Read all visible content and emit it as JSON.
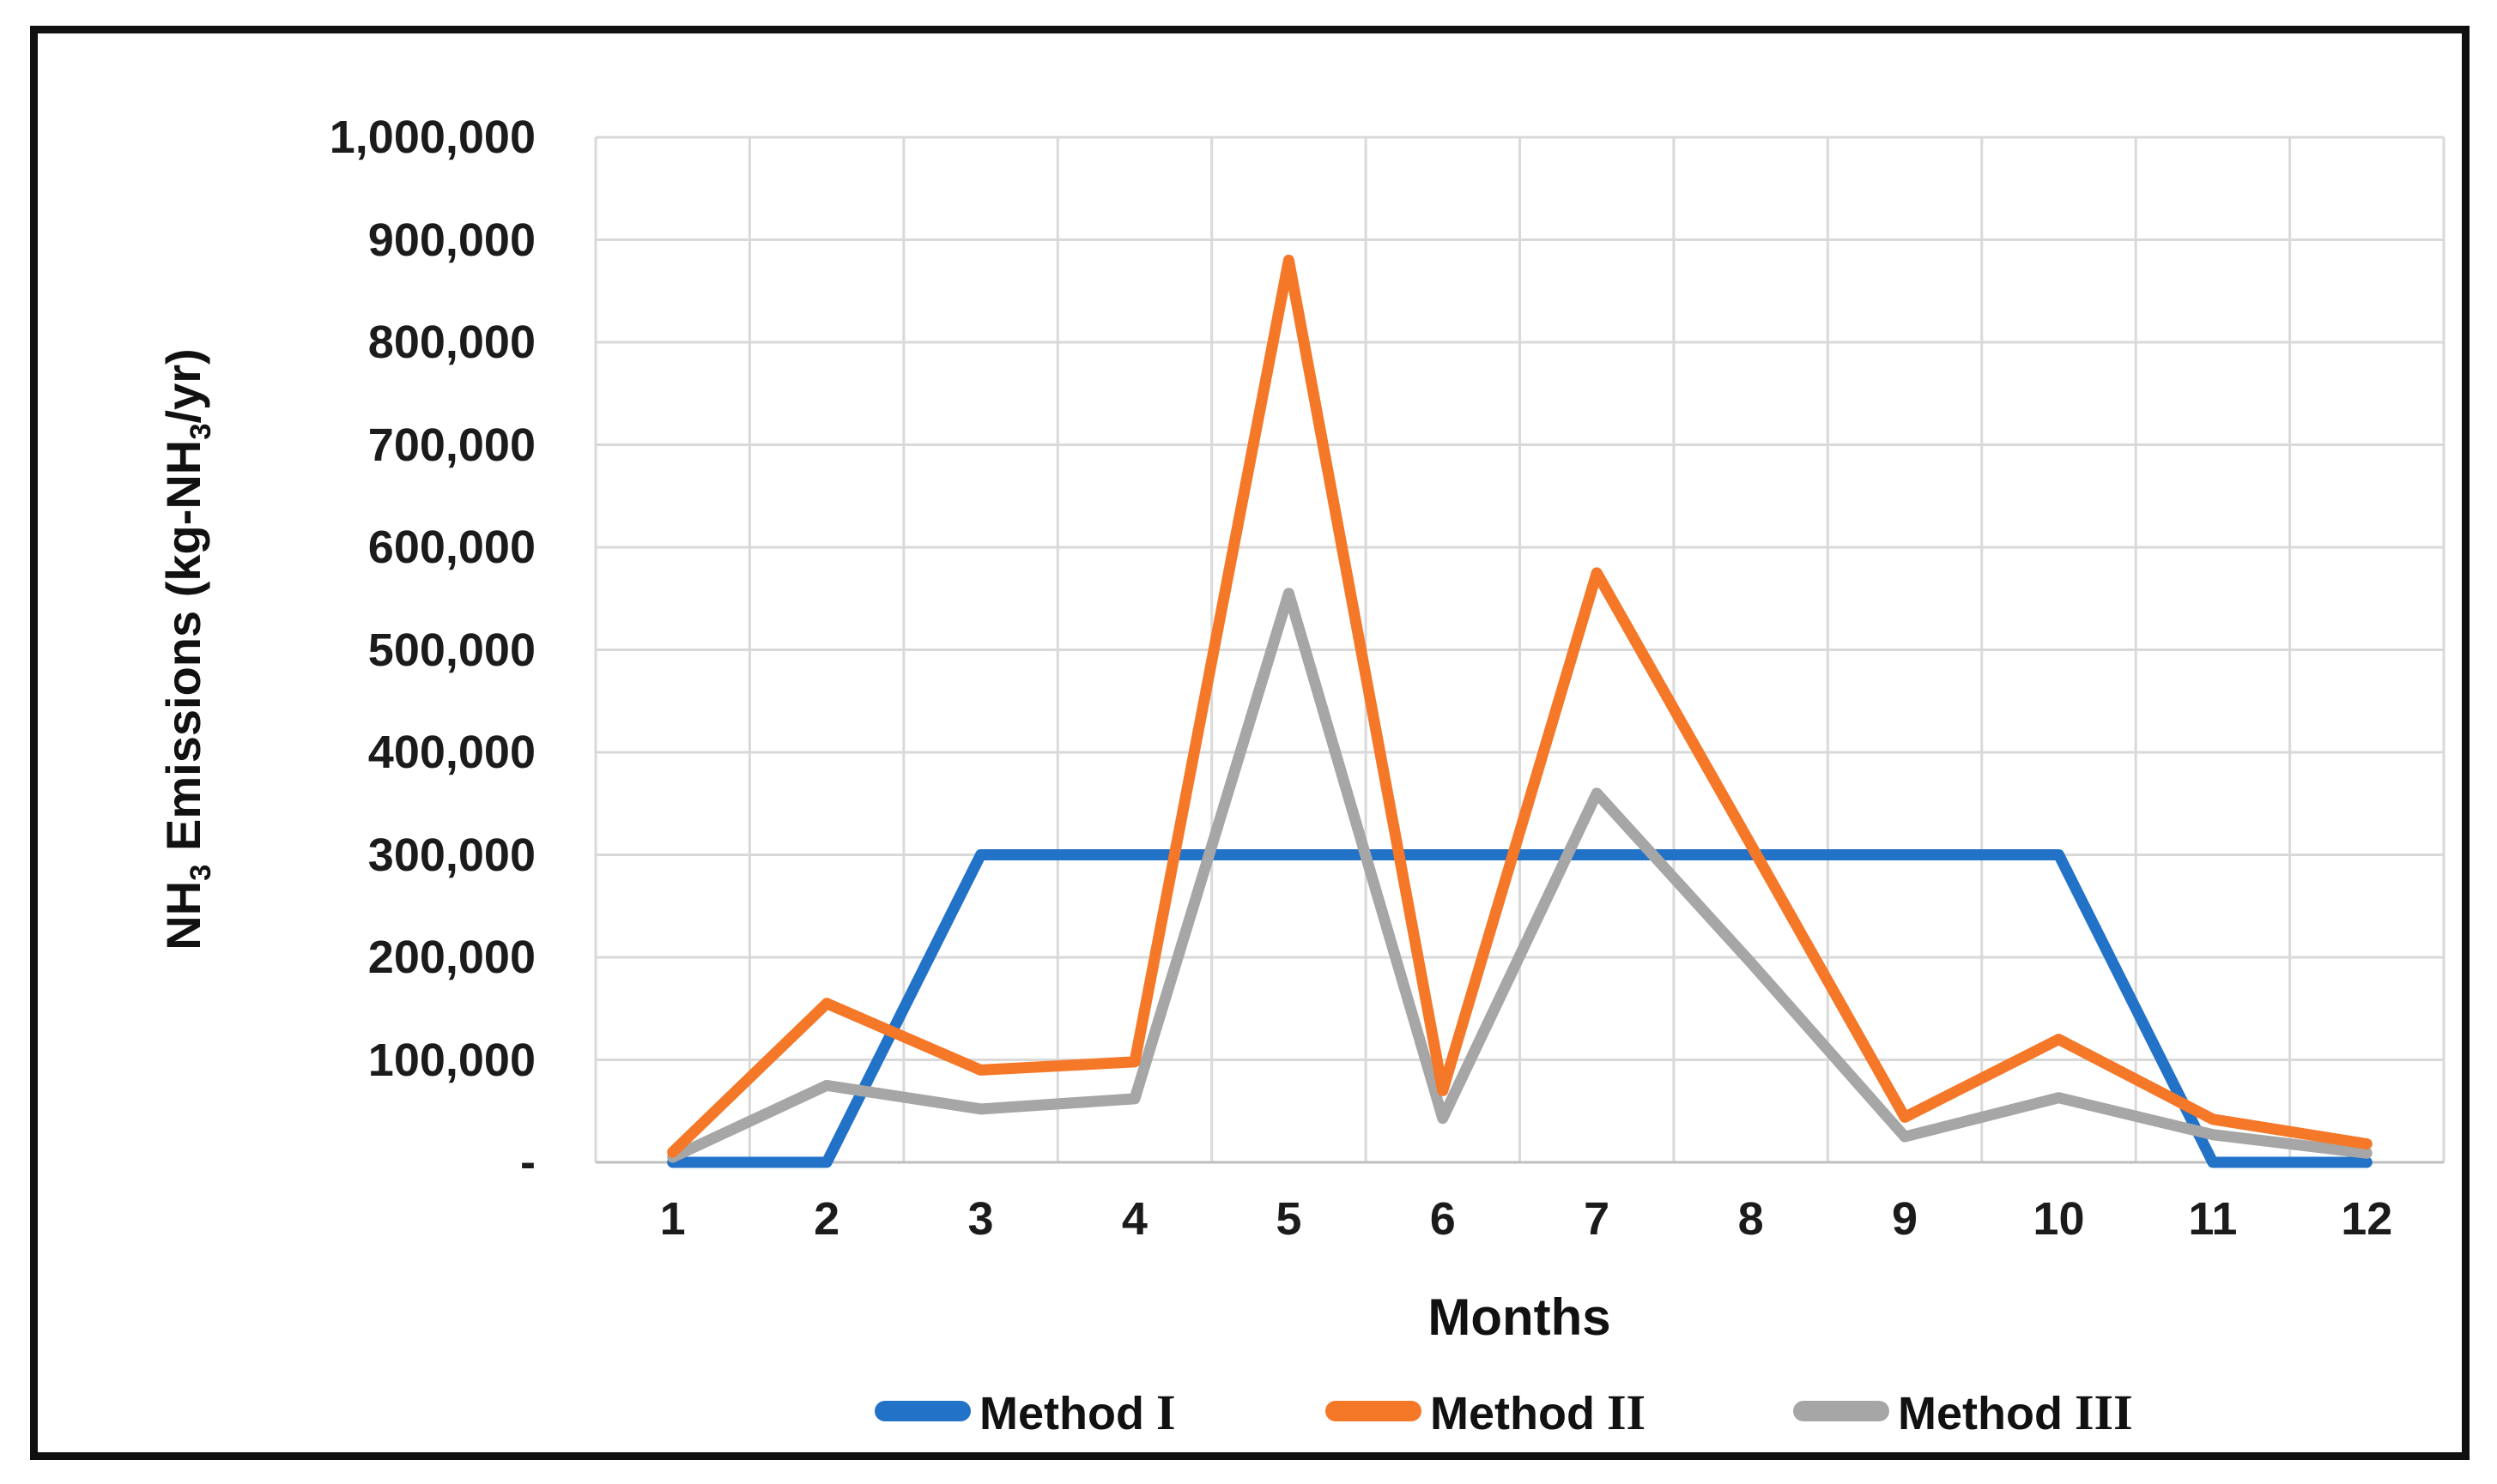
{
  "figure": {
    "x_axis_title": "Months",
    "y_axis_title": "NH₃ Emissions (kg-NH₃/yr)"
  },
  "chart_data": {
    "type": "line",
    "title": "",
    "xlabel": "Months",
    "ylabel": "NH₃ Emissions (kg-NH₃/yr)",
    "categories": [
      1,
      2,
      3,
      4,
      5,
      6,
      7,
      8,
      9,
      10,
      11,
      12
    ],
    "x_tick_labels": [
      "1",
      "2",
      "3",
      "4",
      "5",
      "6",
      "7",
      "8",
      "9",
      "10",
      "11",
      "12"
    ],
    "y_tick_labels": [
      "-",
      "100,000",
      "200,000",
      "300,000",
      "400,000",
      "500,000",
      "600,000",
      "700,000",
      "800,000",
      "900,000",
      "1,000,000"
    ],
    "ylim": [
      0,
      1000000
    ],
    "y_tick_step": 100000,
    "grid": true,
    "legend_position": "bottom",
    "gridline_color": "#D9D9D9",
    "axis_line_color": "#BFBFBF",
    "series": [
      {
        "name": "Method I",
        "label_prefix": "Method",
        "label_numeral": "I",
        "color": "#2272C8",
        "values": [
          0,
          0,
          300000,
          300000,
          300000,
          300000,
          300000,
          300000,
          300000,
          300000,
          0,
          0
        ]
      },
      {
        "name": "Method II",
        "label_prefix": "Method",
        "label_numeral": "II",
        "color": "#F57728",
        "values": [
          10000,
          155000,
          90000,
          98000,
          880000,
          70000,
          575000,
          310000,
          44000,
          120000,
          42000,
          18000
        ]
      },
      {
        "name": "Method III",
        "label_prefix": "Method",
        "label_numeral": "III",
        "color": "#A6A6A6",
        "values": [
          5000,
          75000,
          52000,
          62000,
          555000,
          43000,
          360000,
          195000,
          25000,
          63000,
          27000,
          9000
        ]
      }
    ]
  }
}
